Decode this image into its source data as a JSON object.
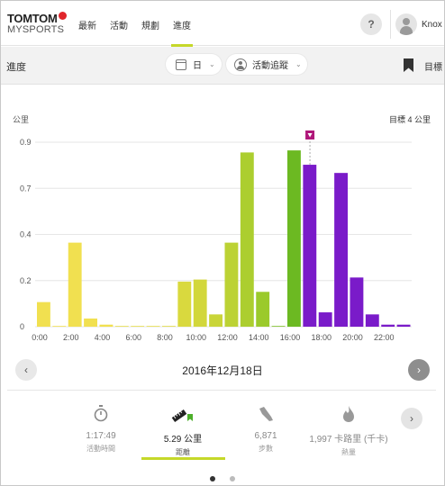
{
  "brand": {
    "name": "TOMTOM",
    "sub": "MYSPORTS"
  },
  "nav": {
    "items": [
      "最新",
      "活動",
      "規劃",
      "進度"
    ],
    "active_index": 3
  },
  "user": {
    "name": "Knox",
    "help": "?"
  },
  "toolbar": {
    "title": "進度",
    "period": "日",
    "activity": "活動追蹤",
    "goal_label": "目標"
  },
  "chart_data": {
    "type": "bar",
    "ylabel": "公里",
    "goal_text": "目標 4 公里",
    "ylim": [
      0,
      0.9
    ],
    "y_ticks": [
      "0",
      "0.2",
      "0.4",
      "0.7",
      "0.9"
    ],
    "y_tick_values": [
      0,
      0.225,
      0.45,
      0.675,
      0.9
    ],
    "x_ticks": [
      "0:00",
      "2:00",
      "4:00",
      "6:00",
      "8:00",
      "10:00",
      "12:00",
      "14:00",
      "16:00",
      "18:00",
      "20:00",
      "22:00"
    ],
    "bin_hours": 1,
    "goal_marker_hour": 17,
    "values": [
      0.12,
      0.0,
      0.41,
      0.04,
      0.01,
      0.0,
      0.0,
      0.0,
      0.0,
      0.22,
      0.23,
      0.06,
      0.41,
      0.85,
      0.17,
      0.0,
      0.86,
      0.79,
      0.07,
      0.75,
      0.24,
      0.06,
      0.01,
      0.01
    ],
    "colors": [
      "#f1e050",
      "#f1e050",
      "#f1e050",
      "#f1e050",
      "#f1e050",
      "#e6dc48",
      "#e6dc48",
      "#e6dc48",
      "#dfd93f",
      "#d9d93e",
      "#d2d73b",
      "#c9d538",
      "#bcd234",
      "#acce2f",
      "#9bca2b",
      "#7dbf24",
      "#6cb922",
      "#7a1bc9",
      "#7a1bc9",
      "#7a1bc9",
      "#7a1bc9",
      "#7a1bc9",
      "#7a1bc9",
      "#7a1bc9"
    ],
    "goal_color": "#b0177a"
  },
  "date_nav": {
    "date": "2016年12月18日",
    "prev": "‹",
    "next": "›"
  },
  "stats": [
    {
      "value": "1:17:49",
      "label": "活動時間",
      "icon": "stopwatch-icon"
    },
    {
      "value": "5.29 公里",
      "label": "距離",
      "icon": "ruler-flag-icon"
    },
    {
      "value": "6,871",
      "label": "步數",
      "icon": "shoe-icon"
    },
    {
      "value": "1,997 卡路里 (千卡)",
      "label": "熱量",
      "icon": "flame-icon"
    }
  ],
  "active_stat_index": 1,
  "stats_next": "›",
  "pager": {
    "count": 2,
    "active": 0
  }
}
